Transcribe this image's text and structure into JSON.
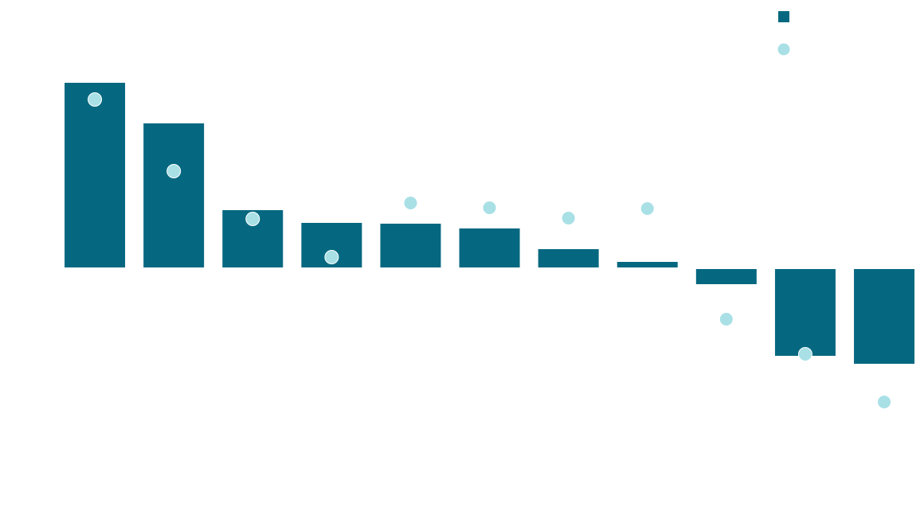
{
  "chart_data": {
    "type": "bar",
    "categories": [
      null,
      null,
      null,
      null,
      null,
      null,
      null,
      null,
      null,
      null,
      null
    ],
    "ylim": [
      -315,
      337
    ],
    "legend": "top-right",
    "series": [
      {
        "type": "bar",
        "color": "#066880",
        "values": [
          233,
          182,
          73,
          57,
          56,
          50,
          24,
          8,
          -20,
          -110,
          -120
        ]
      },
      {
        "type": "scatter",
        "color": "#a8e0e6",
        "values": [
          212,
          122,
          62,
          14,
          82,
          76,
          63,
          75,
          -64,
          -108,
          -168
        ]
      }
    ]
  }
}
